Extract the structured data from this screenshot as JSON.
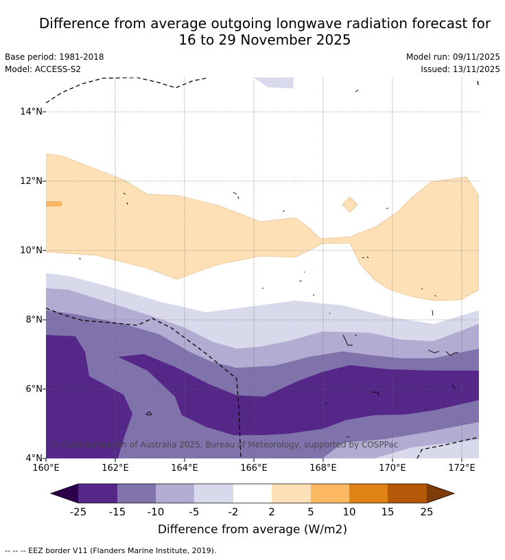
{
  "title": {
    "line1": "Difference from average outgoing longwave radiation forecast for",
    "line2": "16 to 29 November 2025"
  },
  "meta": {
    "base_period": "Base period: 1981-2018",
    "model": "Model: ACCESS-S2",
    "model_run": "Model run: 09/11/2025",
    "issued": "Issued: 13/11/2025"
  },
  "map": {
    "latitude_labels": [
      "14°N",
      "12°N",
      "10°N",
      "8°N",
      "6°N",
      "4°N"
    ],
    "longitude_labels": [
      "160°E",
      "162°E",
      "164°E",
      "166°E",
      "168°E",
      "170°E",
      "172°E"
    ],
    "copyright": "© Commonwealth of Australia 2025, Bureau of Meteorology, supported by COSPPac"
  },
  "colorbar": {
    "ticks": [
      "-25",
      "-15",
      "-10",
      "-5",
      "-2",
      "2",
      "5",
      "10",
      "15",
      "25"
    ],
    "colors": {
      "below_-25": "#2d004b",
      "-25_-15": "#542788",
      "-15_-10": "#8073ac",
      "-10_-5": "#b2abd2",
      "-5_-2": "#d8daeb",
      "-2_2": "#ffffff",
      "2_5": "#fee0b6",
      "5_10": "#fdb863",
      "10_15": "#e08214",
      "15_25": "#b35806",
      "above_25": "#7f3b08"
    },
    "label": "Difference from average (W/m2)"
  },
  "footer": "--  --  -- EEZ border V11 (Flanders Marine Institute, 2019)."
}
